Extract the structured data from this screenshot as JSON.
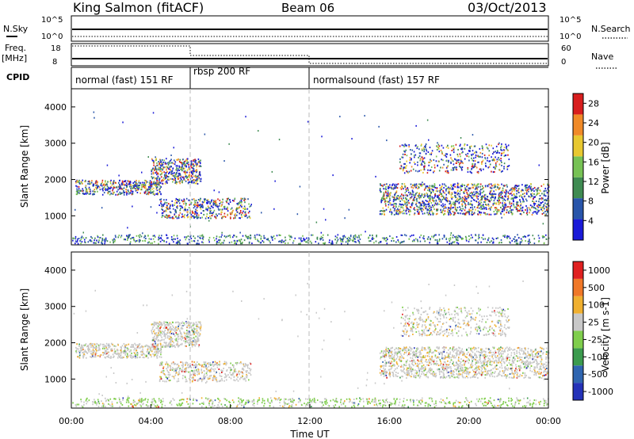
{
  "header": {
    "station": "King Salmon (fitACF)",
    "beam": "Beam 06",
    "date": "03/Oct/2013"
  },
  "panels": {
    "nsky_label": "N.Sky",
    "nsky_ticks": [
      "10^5",
      "10^0"
    ],
    "nsearch_label": "N.Search",
    "nsearch_ticks": [
      "10^5",
      "10^0"
    ],
    "freq_label": "Freq.",
    "freq_unit": "[MHz]",
    "freq_ticks": [
      "18",
      "8"
    ],
    "nave_label": "Nave",
    "nave_ticks": [
      "60",
      "0"
    ],
    "cpid_label": "CPID",
    "cpid_segments": [
      {
        "label": "normal (fast) 151 RF",
        "start_h": 0,
        "end_h": 6
      },
      {
        "label": "rbsp 200 RF",
        "start_h": 6,
        "end_h": 12
      },
      {
        "label": "normalsound (fast) 157 RF",
        "start_h": 12,
        "end_h": 24
      }
    ]
  },
  "chart_data": [
    {
      "type": "heatmap",
      "quantity": "power",
      "ylabel": "Slant Range [km]",
      "xlabel": "Time UT",
      "xlim": [
        0,
        24
      ],
      "ylim": [
        200,
        4500
      ],
      "yticks": [
        "1000",
        "2000",
        "3000",
        "4000"
      ],
      "colorbar_label": "Power [dB]",
      "colorbar_ticks": [
        "4",
        "8",
        "12",
        "16",
        "20",
        "24",
        "28"
      ],
      "colorbar_colors": [
        "#1a1ad8",
        "#2855aa",
        "#3f8b52",
        "#77c255",
        "#e8c830",
        "#f08a28",
        "#d81e1e"
      ],
      "features": [
        {
          "t0": 0.2,
          "t1": 4.5,
          "r0": 1600,
          "r1": 2000
        },
        {
          "t0": 4.0,
          "t1": 6.5,
          "r0": 1900,
          "r1": 2600
        },
        {
          "t0": 4.4,
          "t1": 9.0,
          "r0": 950,
          "r1": 1500
        },
        {
          "t0": 15.5,
          "t1": 24.0,
          "r0": 1050,
          "r1": 1900
        },
        {
          "t0": 16.5,
          "t1": 22.0,
          "r0": 2200,
          "r1": 3000
        },
        {
          "t0": 0.0,
          "t1": 24.0,
          "r0": 250,
          "r1": 500
        }
      ]
    },
    {
      "type": "heatmap",
      "quantity": "velocity",
      "ylabel": "Slant Range [km]",
      "xlabel": "Time UT",
      "xlim": [
        0,
        24
      ],
      "ylim": [
        200,
        4500
      ],
      "yticks": [
        "1000",
        "2000",
        "3000",
        "4000"
      ],
      "xticks": [
        "00:00",
        "04:00",
        "08:00",
        "12:00",
        "16:00",
        "20:00",
        "00:00"
      ],
      "colorbar_label": "Velocity [m s-1]",
      "colorbar_ticks": [
        "1000",
        "500",
        "100",
        "25",
        "-25",
        "-100",
        "-500",
        "-1000"
      ],
      "colorbar_colors": [
        "#2432b8",
        "#2f65b0",
        "#3b9b4e",
        "#7fce4c",
        "#c8c8c8",
        "#f0b030",
        "#f07828",
        "#e02020"
      ],
      "features": [
        {
          "t0": 0.2,
          "t1": 4.5,
          "r0": 1600,
          "r1": 2000
        },
        {
          "t0": 4.0,
          "t1": 6.5,
          "r0": 1900,
          "r1": 2600
        },
        {
          "t0": 4.4,
          "t1": 9.0,
          "r0": 950,
          "r1": 1500
        },
        {
          "t0": 15.5,
          "t1": 24.0,
          "r0": 1050,
          "r1": 1900
        },
        {
          "t0": 16.5,
          "t1": 22.0,
          "r0": 2200,
          "r1": 3000
        },
        {
          "t0": 0.0,
          "t1": 24.0,
          "r0": 250,
          "r1": 500
        }
      ]
    }
  ]
}
